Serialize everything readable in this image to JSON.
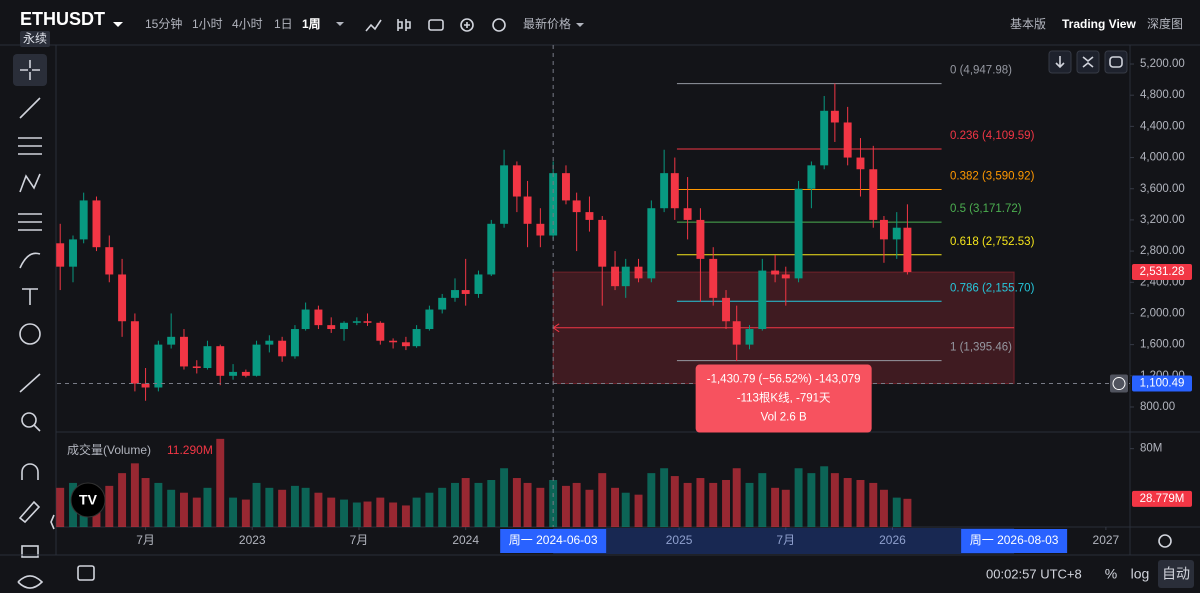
{
  "header": {
    "symbol": "ETHUSDT",
    "contract": "永续",
    "intervals": [
      "15分钟",
      "1小时",
      "4小时",
      "1日",
      "1周"
    ],
    "price_type": "最新价格",
    "views": [
      "基本版",
      "Trading View",
      "深度图"
    ]
  },
  "chart_data": {
    "type": "candlestick",
    "up_color": "#089981",
    "down_color": "#f23645",
    "xlim": [
      2022.085,
      2027.113
    ],
    "ylim": [
      479,
      5444
    ],
    "xticks": [
      {
        "value": 2022.5,
        "label": "7月"
      },
      2023,
      {
        "value": 2023.5,
        "label": "7月"
      },
      2024,
      2025,
      {
        "value": 2025.5,
        "label": "7月"
      },
      2026,
      2027
    ],
    "yticks": [
      {
        "value": 800,
        "label": "800.00"
      },
      {
        "value": 1200,
        "label": "1,200.00"
      },
      {
        "value": 1600,
        "label": "1,600.00"
      },
      {
        "value": 2000,
        "label": "2,000.00"
      },
      {
        "value": 2400,
        "label": "2,400.00"
      },
      {
        "value": 2800,
        "label": "2,800.00"
      },
      {
        "value": 3200,
        "label": "3,200.00"
      },
      {
        "value": 3600,
        "label": "3,600.00"
      },
      {
        "value": 4000,
        "label": "4,000.00"
      },
      {
        "value": 4400,
        "label": "4,400.00"
      },
      {
        "value": 4800,
        "label": "4,800.00"
      },
      {
        "value": 5200,
        "label": "5,200.00"
      }
    ],
    "x": [
      2022.1,
      2022.16,
      2022.21,
      2022.27,
      2022.33,
      2022.39,
      2022.45,
      2022.5,
      2022.56,
      2022.62,
      2022.68,
      2022.74,
      2022.79,
      2022.85,
      2022.91,
      2022.97,
      2023.02,
      2023.08,
      2023.14,
      2023.2,
      2023.25,
      2023.31,
      2023.37,
      2023.43,
      2023.49,
      2023.54,
      2023.6,
      2023.66,
      2023.72,
      2023.77,
      2023.83,
      2023.89,
      2023.95,
      2024.0,
      2024.06,
      2024.12,
      2024.18,
      2024.24,
      2024.29,
      2024.35,
      2024.41,
      2024.47,
      2024.52,
      2024.58,
      2024.64,
      2024.7,
      2024.75,
      2024.81,
      2024.87,
      2024.93,
      2024.98,
      2025.04,
      2025.1,
      2025.16,
      2025.22,
      2025.27,
      2025.33,
      2025.39,
      2025.45,
      2025.5,
      2025.56,
      2025.62,
      2025.68,
      2025.73,
      2025.79,
      2025.85,
      2025.91,
      2025.96,
      2026.02,
      2026.07
    ],
    "candles": [
      [
        2900,
        3150,
        2300,
        2600
      ],
      [
        2600,
        3000,
        2400,
        2950
      ],
      [
        2950,
        3550,
        2900,
        3450
      ],
      [
        3450,
        3500,
        2800,
        2850
      ],
      [
        2850,
        3000,
        2400,
        2500
      ],
      [
        2500,
        2700,
        1700,
        1900
      ],
      [
        1900,
        2000,
        1000,
        1100
      ],
      [
        1100,
        1300,
        880,
        1050
      ],
      [
        1050,
        1650,
        1000,
        1600
      ],
      [
        1600,
        2000,
        1550,
        1700
      ],
      [
        1700,
        1800,
        1280,
        1320
      ],
      [
        1320,
        1400,
        1230,
        1300
      ],
      [
        1300,
        1650,
        1280,
        1580
      ],
      [
        1580,
        1600,
        1080,
        1200
      ],
      [
        1200,
        1350,
        1150,
        1250
      ],
      [
        1250,
        1280,
        1180,
        1200
      ],
      [
        1200,
        1650,
        1190,
        1600
      ],
      [
        1600,
        1720,
        1500,
        1650
      ],
      [
        1650,
        1700,
        1380,
        1450
      ],
      [
        1450,
        1850,
        1420,
        1800
      ],
      [
        1800,
        2140,
        1780,
        2050
      ],
      [
        2050,
        2100,
        1800,
        1850
      ],
      [
        1850,
        1950,
        1750,
        1800
      ],
      [
        1800,
        1900,
        1650,
        1880
      ],
      [
        1880,
        1950,
        1850,
        1900
      ],
      [
        1900,
        2000,
        1840,
        1880
      ],
      [
        1880,
        1900,
        1600,
        1650
      ],
      [
        1650,
        1680,
        1550,
        1630
      ],
      [
        1630,
        1700,
        1530,
        1580
      ],
      [
        1580,
        1850,
        1560,
        1800
      ],
      [
        1800,
        2100,
        1780,
        2050
      ],
      [
        2050,
        2250,
        2000,
        2200
      ],
      [
        2200,
        2450,
        2150,
        2300
      ],
      [
        2300,
        2700,
        2100,
        2250
      ],
      [
        2250,
        2550,
        2200,
        2500
      ],
      [
        2500,
        3200,
        2480,
        3150
      ],
      [
        3150,
        4100,
        3100,
        3900
      ],
      [
        3900,
        3950,
        3300,
        3500
      ],
      [
        3500,
        3700,
        2850,
        3150
      ],
      [
        3150,
        3350,
        2850,
        3000
      ],
      [
        3000,
        3950,
        2950,
        3800
      ],
      [
        3800,
        3900,
        3400,
        3450
      ],
      [
        3450,
        3550,
        2800,
        3300
      ],
      [
        3300,
        3500,
        3050,
        3200
      ],
      [
        3200,
        3250,
        2100,
        2600
      ],
      [
        2600,
        2800,
        2300,
        2350
      ],
      [
        2350,
        2700,
        2200,
        2600
      ],
      [
        2600,
        2700,
        2400,
        2450
      ],
      [
        2450,
        3450,
        2400,
        3350
      ],
      [
        3350,
        4100,
        3300,
        3800
      ],
      [
        3800,
        4000,
        3200,
        3350
      ],
      [
        3350,
        3750,
        2950,
        3200
      ],
      [
        3200,
        3350,
        2150,
        2700
      ],
      [
        2700,
        2850,
        2100,
        2200
      ],
      [
        2200,
        2300,
        1800,
        1900
      ],
      [
        1900,
        2100,
        1390,
        1600
      ],
      [
        1600,
        1850,
        1540,
        1800
      ],
      [
        1800,
        2700,
        1780,
        2550
      ],
      [
        2550,
        2750,
        2400,
        2500
      ],
      [
        2500,
        2600,
        2100,
        2450
      ],
      [
        2450,
        3700,
        2400,
        3600
      ],
      [
        3600,
        3950,
        3350,
        3900
      ],
      [
        3900,
        4790,
        3850,
        4600
      ],
      [
        4600,
        4950,
        4200,
        4450
      ],
      [
        4450,
        4650,
        3900,
        4000
      ],
      [
        4000,
        4250,
        3500,
        3850
      ],
      [
        3850,
        4150,
        3100,
        3200
      ],
      [
        3200,
        3250,
        2650,
        2950
      ],
      [
        2950,
        3300,
        2700,
        3100
      ],
      [
        3100,
        3400,
        2500,
        2531.28
      ]
    ],
    "volume": {
      "label": "成交量(Volume)",
      "hover": {
        "value": 11.29,
        "label": "11.290M"
      },
      "ylim": [
        0,
        97
      ],
      "yticks": [
        {
          "value": 80,
          "label": "80M"
        }
      ],
      "last": {
        "value": 28.779,
        "label": "28.779M"
      },
      "values": [
        40,
        45,
        35,
        38,
        42,
        55,
        65,
        50,
        45,
        38,
        35,
        30,
        40,
        90,
        30,
        28,
        45,
        40,
        38,
        42,
        40,
        35,
        30,
        28,
        25,
        26,
        30,
        25,
        22,
        30,
        35,
        40,
        45,
        50,
        45,
        48,
        60,
        50,
        45,
        40,
        48,
        42,
        45,
        38,
        55,
        40,
        35,
        33,
        55,
        60,
        52,
        45,
        50,
        45,
        48,
        60,
        45,
        55,
        40,
        38,
        60,
        55,
        62,
        55,
        50,
        48,
        45,
        38,
        30,
        28.779
      ]
    },
    "last_price": {
      "value": 2531.28,
      "label": "2,531.28"
    },
    "crosshair_price": {
      "value": 1100.49,
      "label": "1,100.49"
    },
    "crosshair_x": {
      "value": 2024.41,
      "label": "周一 2024-06-03"
    },
    "range_end_x": {
      "value": 2026.57,
      "label": "周一 2026-08-03"
    },
    "fibonacci": {
      "x_range": [
        2024.99,
        2026.23
      ],
      "levels": [
        {
          "value": 4947.98,
          "label": "0 (4,947.98)",
          "color": "#9598a1"
        },
        {
          "value": 4109.59,
          "label": "0.236 (4,109.59)",
          "color": "#f23645"
        },
        {
          "value": 3590.92,
          "label": "0.382 (3,590.92)",
          "color": "#ff9800"
        },
        {
          "value": 3171.72,
          "label": "0.5 (3,171.72)",
          "color": "#4caf50"
        },
        {
          "value": 2752.53,
          "label": "0.618 (2,752.53)",
          "color": "#f5e51b"
        },
        {
          "value": 2155.7,
          "label": "0.786 (2,155.70)",
          "color": "#26c6da"
        },
        {
          "value": 1395.46,
          "label": "1 (1,395.46)",
          "color": "#9598a1"
        }
      ]
    },
    "measure_tooltip": [
      "-1,430.79 (−56.52%) -143,079",
      "-113根K线, -791天",
      "Vol 2.6 B"
    ]
  },
  "footer": {
    "clock": "00:02:57 UTC+8",
    "scale_buttons": [
      "%",
      "log",
      "自动"
    ]
  }
}
